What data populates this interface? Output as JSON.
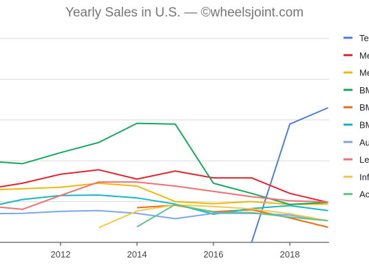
{
  "chart_data": {
    "type": "line",
    "title": "Yearly Sales in U.S. — ©wheelsjoint.com",
    "xlabel": "",
    "ylabel": "",
    "xlim": [
      2010,
      2019
    ],
    "ylim": [
      0,
      50000
    ],
    "x_ticks": [
      2012,
      2014,
      2016,
      2018
    ],
    "y_gridlines": [
      0,
      10000,
      20000,
      30000,
      40000,
      50000
    ],
    "grid": "horizontal",
    "legend_position": "right",
    "series": [
      {
        "name": "Te",
        "color": "#4d7cdb",
        "points": [
          [
            2017,
            0
          ],
          [
            2018,
            29000
          ],
          [
            2019,
            33000
          ]
        ]
      },
      {
        "name": "Me",
        "color": "#e8202b",
        "points": [
          [
            2010,
            13000
          ],
          [
            2011,
            14500
          ],
          [
            2012,
            16700
          ],
          [
            2013,
            17800
          ],
          [
            2014,
            15500
          ],
          [
            2015,
            17500
          ],
          [
            2016,
            15800
          ],
          [
            2017,
            15800
          ],
          [
            2018,
            12000
          ],
          [
            2019,
            9800
          ]
        ]
      },
      {
        "name": "Me",
        "color": "#f2b705",
        "points": [
          [
            2010,
            12800
          ],
          [
            2012,
            13500
          ],
          [
            2013,
            14500
          ],
          [
            2014,
            13800
          ],
          [
            2015,
            10000
          ],
          [
            2016,
            9500
          ],
          [
            2017,
            10000
          ],
          [
            2018,
            9300
          ],
          [
            2019,
            9400
          ]
        ]
      },
      {
        "name": "BM",
        "color": "#16a85a",
        "points": [
          [
            2010,
            20000
          ],
          [
            2011,
            19300
          ],
          [
            2012,
            22000
          ],
          [
            2013,
            24500
          ],
          [
            2014,
            29200
          ],
          [
            2015,
            29000
          ],
          [
            2016,
            14500
          ],
          [
            2017,
            12000
          ],
          [
            2018,
            9300
          ],
          [
            2019,
            9800
          ]
        ]
      },
      {
        "name": "BM",
        "color": "#f26a0c",
        "points": [
          [
            2014,
            8500
          ],
          [
            2015,
            9100
          ],
          [
            2016,
            7500
          ],
          [
            2017,
            8000
          ],
          [
            2018,
            6000
          ],
          [
            2019,
            3700
          ]
        ]
      },
      {
        "name": "BM",
        "color": "#12b8c2",
        "points": [
          [
            2010,
            8500
          ],
          [
            2011,
            10500
          ],
          [
            2012,
            11500
          ],
          [
            2013,
            11600
          ],
          [
            2014,
            10900
          ],
          [
            2015,
            9400
          ],
          [
            2016,
            6900
          ],
          [
            2017,
            8300
          ],
          [
            2018,
            9000
          ],
          [
            2019,
            7800
          ]
        ]
      },
      {
        "name": "Au",
        "color": "#7ba6ea",
        "points": [
          [
            2010,
            7000
          ],
          [
            2011,
            7100
          ],
          [
            2012,
            7600
          ],
          [
            2013,
            7800
          ],
          [
            2014,
            7100
          ],
          [
            2015,
            5800
          ],
          [
            2016,
            7100
          ],
          [
            2017,
            7100
          ],
          [
            2018,
            6700
          ],
          [
            2019,
            5300
          ]
        ]
      },
      {
        "name": "Le",
        "color": "#f26f6f",
        "points": [
          [
            2010,
            9000
          ],
          [
            2011,
            8100
          ],
          [
            2012,
            11500
          ],
          [
            2013,
            14800
          ],
          [
            2014,
            14800
          ],
          [
            2015,
            13800
          ],
          [
            2016,
            12500
          ],
          [
            2017,
            11200
          ],
          [
            2018,
            10200
          ],
          [
            2019,
            9900
          ]
        ]
      },
      {
        "name": "Inf",
        "color": "#f7c843",
        "points": [
          [
            2013,
            3600
          ],
          [
            2014,
            7700
          ],
          [
            2015,
            9200
          ],
          [
            2016,
            8800
          ],
          [
            2017,
            8200
          ],
          [
            2018,
            7000
          ],
          [
            2019,
            5300
          ]
        ]
      },
      {
        "name": "Ac",
        "color": "#5bc488",
        "points": [
          [
            2014,
            3800
          ],
          [
            2015,
            9300
          ],
          [
            2016,
            7400
          ],
          [
            2017,
            7300
          ],
          [
            2018,
            6200
          ],
          [
            2019,
            5300
          ]
        ]
      }
    ]
  }
}
